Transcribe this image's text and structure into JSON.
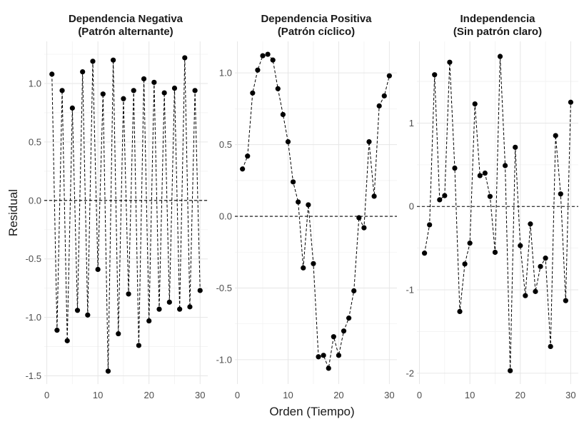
{
  "figure": {
    "xlabel": "Orden (Tiempo)",
    "ylabel": "Residual"
  },
  "chart_data": [
    {
      "type": "line",
      "title_line1": "Dependencia Negativa",
      "title_line2": "(Patrón alternante)",
      "x": [
        1,
        2,
        3,
        4,
        5,
        6,
        7,
        8,
        9,
        10,
        11,
        12,
        13,
        14,
        15,
        16,
        17,
        18,
        19,
        20,
        21,
        22,
        23,
        24,
        25,
        26,
        27,
        28,
        29,
        30
      ],
      "values": [
        1.08,
        -1.11,
        0.94,
        -1.2,
        0.79,
        -0.94,
        1.1,
        -0.98,
        1.19,
        -0.59,
        0.91,
        -1.46,
        1.2,
        -1.14,
        0.87,
        -0.8,
        0.94,
        -1.24,
        1.04,
        -1.03,
        1.01,
        -0.93,
        0.92,
        -0.87,
        0.96,
        -0.93,
        1.22,
        -0.91,
        0.94,
        -0.77
      ],
      "xlim": [
        -0.5,
        31.5
      ],
      "ylim": [
        -1.57,
        1.36
      ],
      "xticks": [
        0,
        10,
        20,
        30
      ],
      "yticks": [
        -1.5,
        -1.0,
        -0.5,
        0.0,
        0.5,
        1.0
      ],
      "ytick_labels": [
        "-1.5",
        "-1.0",
        "-0.5",
        "0.0",
        "0.5",
        "1.0"
      ],
      "reference_line": 0,
      "line_style": "dashed",
      "grid": true
    },
    {
      "type": "line",
      "title_line1": "Dependencia Positiva",
      "title_line2": "(Patrón cíclico)",
      "x": [
        1,
        2,
        3,
        4,
        5,
        6,
        7,
        8,
        9,
        10,
        11,
        12,
        13,
        14,
        15,
        16,
        17,
        18,
        19,
        20,
        21,
        22,
        23,
        24,
        25,
        26,
        27,
        28,
        29,
        30
      ],
      "values": [
        0.33,
        0.42,
        0.86,
        1.02,
        1.12,
        1.13,
        1.09,
        0.89,
        0.71,
        0.52,
        0.24,
        0.1,
        -0.36,
        0.08,
        -0.33,
        -0.98,
        -0.97,
        -1.06,
        -0.84,
        -0.97,
        -0.8,
        -0.71,
        -0.52,
        -0.01,
        -0.08,
        0.52,
        0.14,
        0.77,
        0.84,
        0.98
      ],
      "xlim": [
        -0.5,
        31.5
      ],
      "ylim": [
        -1.17,
        1.22
      ],
      "xticks": [
        0,
        10,
        20,
        30
      ],
      "yticks": [
        -1.0,
        -0.5,
        0.0,
        0.5,
        1.0
      ],
      "ytick_labels": [
        "-1.0",
        "-0.5",
        "0.0",
        "0.5",
        "1.0"
      ],
      "reference_line": 0,
      "line_style": "dashed",
      "grid": true
    },
    {
      "type": "line",
      "title_line1": "Independencia",
      "title_line2": "(Sin patrón claro)",
      "x": [
        1,
        2,
        3,
        4,
        5,
        6,
        7,
        8,
        9,
        10,
        11,
        12,
        13,
        14,
        15,
        16,
        17,
        18,
        19,
        20,
        21,
        22,
        23,
        24,
        25,
        26,
        27,
        28,
        29,
        30
      ],
      "values": [
        -0.56,
        -0.22,
        1.58,
        0.08,
        0.13,
        1.73,
        0.46,
        -1.26,
        -0.69,
        -0.44,
        1.23,
        0.37,
        0.4,
        0.12,
        -0.55,
        1.8,
        0.49,
        -1.97,
        0.71,
        -0.47,
        -1.07,
        -0.21,
        -1.02,
        -0.72,
        -0.62,
        -1.68,
        0.85,
        0.15,
        -1.13,
        1.25
      ],
      "xlim": [
        -0.5,
        31.5
      ],
      "ylim": [
        -2.13,
        1.98
      ],
      "xticks": [
        0,
        10,
        20,
        30
      ],
      "yticks": [
        -2,
        -1,
        0,
        1
      ],
      "ytick_labels": [
        "-2",
        "-1",
        "0",
        "1"
      ],
      "reference_line": 0,
      "line_style": "dashed",
      "grid": true
    }
  ]
}
